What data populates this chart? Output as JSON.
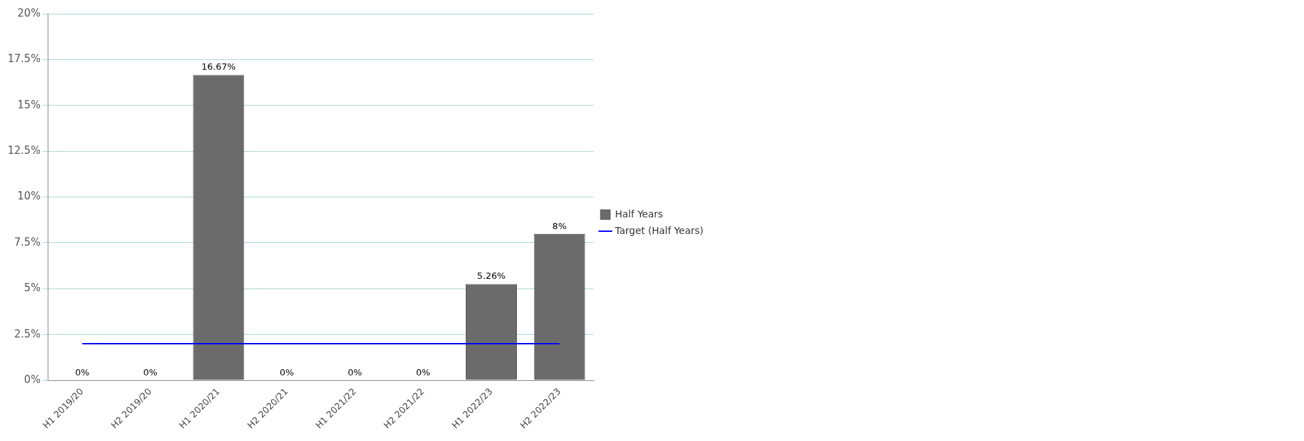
{
  "chart_data": {
    "type": "bar",
    "categories": [
      "H1 2019/20",
      "H2 2019/20",
      "H1 2020/21",
      "H2 2020/21",
      "H1 2021/22",
      "H2 2021/22",
      "H1 2022/23",
      "H2 2022/23"
    ],
    "series": [
      {
        "name": "Half Years",
        "color": "#6b6b6b",
        "values": [
          0,
          0,
          16.67,
          0,
          0,
          0,
          5.26,
          8
        ],
        "value_labels": [
          "0%",
          "0%",
          "16.67%",
          "0%",
          "0%",
          "0%",
          "5.26%",
          "8%"
        ]
      },
      {
        "name": "Target (Half Years)",
        "type": "line",
        "color": "#0000ff",
        "values": [
          2,
          2,
          2,
          2,
          2,
          2,
          2,
          2
        ]
      }
    ],
    "ylim": [
      0,
      20
    ],
    "yticks": [
      {
        "value": 0,
        "label": "0%"
      },
      {
        "value": 2.5,
        "label": "2.5%"
      },
      {
        "value": 5,
        "label": "5%"
      },
      {
        "value": 7.5,
        "label": "7.5%"
      },
      {
        "value": 10,
        "label": "10%"
      },
      {
        "value": 12.5,
        "label": "12.5%"
      },
      {
        "value": 15,
        "label": "15%"
      },
      {
        "value": 17.5,
        "label": "17.5%"
      },
      {
        "value": 20,
        "label": "20%"
      }
    ],
    "grid": "y",
    "legend": "right",
    "marker": "none",
    "line_style": "solid"
  }
}
